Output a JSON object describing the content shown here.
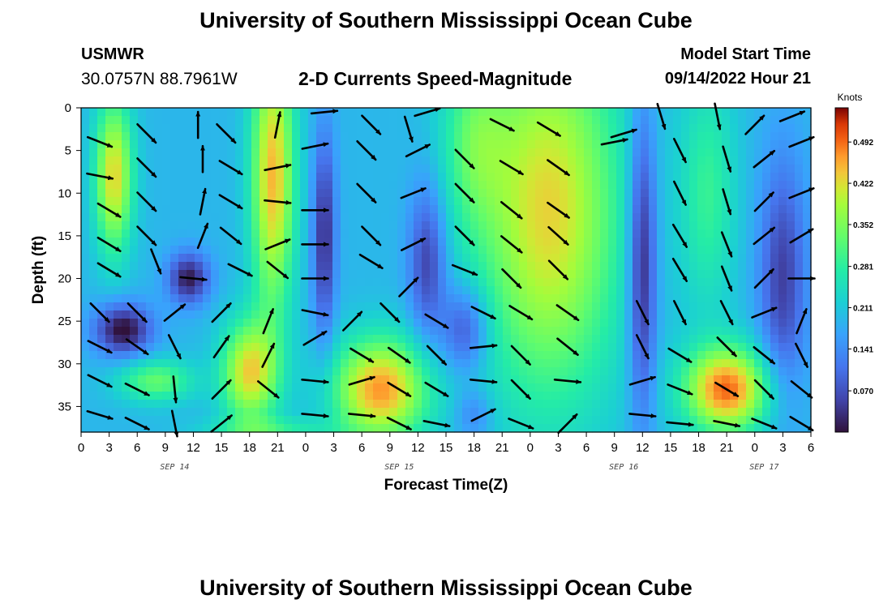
{
  "header": {
    "title": "University of Southern Mississippi Ocean Cube",
    "station": "USMWR",
    "coords": "30.0757N  88.7961W",
    "subtitle": "2-D Currents Speed-Magnitude",
    "model_start_label": "Model Start Time",
    "model_start_value": "09/14/2022 Hour 21"
  },
  "footer": {
    "title": "University of Southern Mississippi Ocean Cube"
  },
  "chart_data": {
    "type": "heatmap",
    "title": "2-D Currents Speed-Magnitude",
    "xlabel": "Forecast Time(Z)",
    "ylabel": "Depth (ft)",
    "colorbar_title": "Knots",
    "colorbar_ticks": [
      "0.492",
      "0.422",
      "0.352",
      "0.281",
      "0.211",
      "0.141",
      "0.070"
    ],
    "colorbar_values": [
      0.492,
      0.422,
      0.352,
      0.281,
      0.211,
      0.141,
      0.07
    ],
    "colorbar_range": [
      0.0,
      0.55
    ],
    "x_ticks": [
      "0",
      "3",
      "6",
      "9",
      "12",
      "15",
      "18",
      "21",
      "0",
      "3",
      "6",
      "9",
      "12",
      "15",
      "18",
      "21",
      "0",
      "3",
      "6",
      "9",
      "12",
      "15",
      "18",
      "21",
      "0",
      "3",
      "6"
    ],
    "x_range_hours": [
      0,
      78
    ],
    "date_labels": [
      {
        "text": "SEP 14",
        "hour": 10
      },
      {
        "text": "SEP 15",
        "hour": 34
      },
      {
        "text": "SEP 16",
        "hour": 58
      },
      {
        "text": "SEP 17",
        "hour": 73
      }
    ],
    "y_ticks": [
      "0",
      "5",
      "10",
      "15",
      "20",
      "25",
      "30",
      "35"
    ],
    "y_tick_values": [
      0,
      5,
      10,
      15,
      20,
      25,
      30,
      35
    ],
    "y_range_ft": [
      0,
      38
    ],
    "speed_features": [
      {
        "t": 3.5,
        "d": 8,
        "st": 2.0,
        "sd": 9,
        "amp": 0.24
      },
      {
        "t": 20.5,
        "d": 8,
        "st": 2.3,
        "sd": 16,
        "amp": 0.26
      },
      {
        "t": 18,
        "d": 31,
        "st": 3.0,
        "sd": 6,
        "amp": 0.24
      },
      {
        "t": 8,
        "d": 32,
        "st": 4.0,
        "sd": 2.5,
        "amp": 0.14
      },
      {
        "t": 32,
        "d": 33,
        "st": 5.0,
        "sd": 6,
        "amp": 0.28
      },
      {
        "t": 42,
        "d": 4,
        "st": 3.5,
        "sd": 10,
        "amp": 0.1
      },
      {
        "t": 50,
        "d": 12,
        "st": 7.5,
        "sd": 22,
        "amp": 0.24
      },
      {
        "t": 69,
        "d": 33,
        "st": 4.5,
        "sd": 5,
        "amp": 0.3
      },
      {
        "t": 67,
        "d": 10,
        "st": 3.0,
        "sd": 14,
        "amp": 0.1
      },
      {
        "t": 20,
        "d": 37.5,
        "st": 7,
        "sd": 1.2,
        "amp": 0.08
      }
    ],
    "slow_features": [
      {
        "t": 4.5,
        "d": 26,
        "st": 3.0,
        "sd": 3,
        "amp": -0.2
      },
      {
        "t": 11.5,
        "d": 20,
        "st": 2.2,
        "sd": 3,
        "amp": -0.18
      },
      {
        "t": 26,
        "d": 15,
        "st": 1.2,
        "sd": 12,
        "amp": -0.16
      },
      {
        "t": 37,
        "d": 18,
        "st": 2.0,
        "sd": 9,
        "amp": -0.14
      },
      {
        "t": 41,
        "d": 26,
        "st": 2.5,
        "sd": 5,
        "amp": -0.13
      },
      {
        "t": 60,
        "d": 18,
        "st": 1.5,
        "sd": 18,
        "amp": -0.18
      },
      {
        "t": 75,
        "d": 20,
        "st": 2.5,
        "sd": 14,
        "amp": -0.14
      },
      {
        "t": 42,
        "d": 36,
        "st": 2.0,
        "sd": 3,
        "amp": -0.07
      }
    ],
    "vectors": [
      {
        "t": 2,
        "d": 4,
        "u": 1,
        "v": 0.4
      },
      {
        "t": 7,
        "d": 3,
        "u": 1,
        "v": 1
      },
      {
        "t": 12.5,
        "d": 2,
        "u": 0,
        "v": -1
      },
      {
        "t": 15.5,
        "d": 3,
        "u": 1,
        "v": 1
      },
      {
        "t": 21,
        "d": 2,
        "u": 0.2,
        "v": -1
      },
      {
        "t": 26,
        "d": 0.5,
        "u": 1,
        "v": -0.1
      },
      {
        "t": 31,
        "d": 2,
        "u": 1,
        "v": 1
      },
      {
        "t": 35,
        "d": 2.5,
        "u": 0.3,
        "v": 1
      },
      {
        "t": 37,
        "d": 0.5,
        "u": 1,
        "v": -0.3
      },
      {
        "t": 45,
        "d": 2,
        "u": 1,
        "v": 0.5
      },
      {
        "t": 50,
        "d": 2.5,
        "u": 1,
        "v": 0.6
      },
      {
        "t": 58,
        "d": 3,
        "u": 1,
        "v": -0.3
      },
      {
        "t": 62,
        "d": 1,
        "u": 0.3,
        "v": 1
      },
      {
        "t": 68,
        "d": 1,
        "u": 0.2,
        "v": 1
      },
      {
        "t": 72,
        "d": 2,
        "u": 1,
        "v": -1
      },
      {
        "t": 76,
        "d": 1,
        "u": 1,
        "v": -0.4
      },
      {
        "t": 2,
        "d": 8,
        "u": 1,
        "v": 0.2
      },
      {
        "t": 7,
        "d": 7,
        "u": 1,
        "v": 1
      },
      {
        "t": 13,
        "d": 6,
        "u": 0,
        "v": -1
      },
      {
        "t": 16,
        "d": 7,
        "u": 1,
        "v": 0.6
      },
      {
        "t": 21,
        "d": 7,
        "u": 1,
        "v": -0.2
      },
      {
        "t": 25,
        "d": 4.5,
        "u": 1,
        "v": -0.2
      },
      {
        "t": 30.5,
        "d": 5,
        "u": 1,
        "v": 1
      },
      {
        "t": 36,
        "d": 5,
        "u": 1,
        "v": -0.5
      },
      {
        "t": 41,
        "d": 6,
        "u": 1,
        "v": 1
      },
      {
        "t": 46,
        "d": 7,
        "u": 1,
        "v": 0.6
      },
      {
        "t": 51,
        "d": 7,
        "u": 1,
        "v": 0.7
      },
      {
        "t": 57,
        "d": 4,
        "u": 1,
        "v": -0.2
      },
      {
        "t": 64,
        "d": 5,
        "u": 0.5,
        "v": 1
      },
      {
        "t": 69,
        "d": 6,
        "u": 0.3,
        "v": 1
      },
      {
        "t": 73,
        "d": 6,
        "u": 1,
        "v": -0.8
      },
      {
        "t": 77,
        "d": 4,
        "u": 1,
        "v": -0.4
      },
      {
        "t": 3,
        "d": 12,
        "u": 1,
        "v": 0.6
      },
      {
        "t": 7,
        "d": 11,
        "u": 1,
        "v": 1
      },
      {
        "t": 13,
        "d": 11,
        "u": 0.2,
        "v": -1
      },
      {
        "t": 16,
        "d": 11,
        "u": 1,
        "v": 0.6
      },
      {
        "t": 21,
        "d": 11,
        "u": 1,
        "v": 0.1
      },
      {
        "t": 25,
        "d": 12,
        "u": 1,
        "v": 0
      },
      {
        "t": 30.5,
        "d": 10,
        "u": 1,
        "v": 1
      },
      {
        "t": 35.5,
        "d": 10,
        "u": 1,
        "v": -0.4
      },
      {
        "t": 41,
        "d": 10,
        "u": 1,
        "v": 1
      },
      {
        "t": 46,
        "d": 12,
        "u": 1,
        "v": 0.8
      },
      {
        "t": 51,
        "d": 12,
        "u": 1,
        "v": 0.7
      },
      {
        "t": 64,
        "d": 10,
        "u": 0.5,
        "v": 1
      },
      {
        "t": 69,
        "d": 11,
        "u": 0.3,
        "v": 1
      },
      {
        "t": 73,
        "d": 11,
        "u": 1,
        "v": -1
      },
      {
        "t": 77,
        "d": 10,
        "u": 1,
        "v": -0.4
      },
      {
        "t": 3,
        "d": 16,
        "u": 1,
        "v": 0.6
      },
      {
        "t": 7,
        "d": 15,
        "u": 1,
        "v": 1
      },
      {
        "t": 13,
        "d": 15,
        "u": 0.4,
        "v": -1
      },
      {
        "t": 16,
        "d": 15,
        "u": 1,
        "v": 0.8
      },
      {
        "t": 21,
        "d": 16,
        "u": 1,
        "v": -0.4
      },
      {
        "t": 25,
        "d": 16,
        "u": 1,
        "v": 0
      },
      {
        "t": 31,
        "d": 15,
        "u": 1,
        "v": 1
      },
      {
        "t": 35.5,
        "d": 16,
        "u": 1,
        "v": -0.5
      },
      {
        "t": 41,
        "d": 15,
        "u": 1,
        "v": 1
      },
      {
        "t": 46,
        "d": 16,
        "u": 1,
        "v": 0.8
      },
      {
        "t": 51,
        "d": 15,
        "u": 1,
        "v": 0.9
      },
      {
        "t": 64,
        "d": 15,
        "u": 0.6,
        "v": 1
      },
      {
        "t": 69,
        "d": 16,
        "u": 0.4,
        "v": 1
      },
      {
        "t": 73,
        "d": 15,
        "u": 1,
        "v": -0.8
      },
      {
        "t": 77,
        "d": 15,
        "u": 1,
        "v": -0.6
      },
      {
        "t": 3,
        "d": 19,
        "u": 1,
        "v": 0.6
      },
      {
        "t": 8,
        "d": 18,
        "u": 0.4,
        "v": 1
      },
      {
        "t": 12,
        "d": 20,
        "u": 1,
        "v": 0.1
      },
      {
        "t": 17,
        "d": 19,
        "u": 1,
        "v": 0.5
      },
      {
        "t": 21,
        "d": 19,
        "u": 1,
        "v": 0.8
      },
      {
        "t": 25,
        "d": 20,
        "u": 1,
        "v": 0
      },
      {
        "t": 31,
        "d": 18,
        "u": 1,
        "v": 0.6
      },
      {
        "t": 35,
        "d": 21,
        "u": 1,
        "v": -1
      },
      {
        "t": 41,
        "d": 19,
        "u": 1,
        "v": 0.4
      },
      {
        "t": 46,
        "d": 20,
        "u": 1,
        "v": 1
      },
      {
        "t": 51,
        "d": 19,
        "u": 1,
        "v": 1
      },
      {
        "t": 64,
        "d": 19,
        "u": 0.6,
        "v": 1
      },
      {
        "t": 69,
        "d": 20,
        "u": 0.4,
        "v": 1
      },
      {
        "t": 73,
        "d": 20,
        "u": 1,
        "v": -1
      },
      {
        "t": 77,
        "d": 20,
        "u": 1,
        "v": 0
      },
      {
        "t": 2,
        "d": 24,
        "u": 1,
        "v": 1
      },
      {
        "t": 6,
        "d": 24,
        "u": 1,
        "v": 1
      },
      {
        "t": 10,
        "d": 24,
        "u": 1,
        "v": -0.8
      },
      {
        "t": 15,
        "d": 24,
        "u": 1,
        "v": -1
      },
      {
        "t": 20,
        "d": 25,
        "u": 0.4,
        "v": -1
      },
      {
        "t": 25,
        "d": 24,
        "u": 1,
        "v": 0.2
      },
      {
        "t": 29,
        "d": 25,
        "u": 1,
        "v": -1
      },
      {
        "t": 33,
        "d": 24,
        "u": 1,
        "v": 1
      },
      {
        "t": 38,
        "d": 25,
        "u": 1,
        "v": 0.6
      },
      {
        "t": 43,
        "d": 24,
        "u": 1,
        "v": 0.5
      },
      {
        "t": 47,
        "d": 24,
        "u": 1,
        "v": 0.6
      },
      {
        "t": 52,
        "d": 24,
        "u": 1,
        "v": 0.7
      },
      {
        "t": 60,
        "d": 24,
        "u": 0.5,
        "v": 1
      },
      {
        "t": 64,
        "d": 24,
        "u": 0.5,
        "v": 1
      },
      {
        "t": 69,
        "d": 24,
        "u": 0.5,
        "v": 1
      },
      {
        "t": 73,
        "d": 24,
        "u": 1,
        "v": -0.4
      },
      {
        "t": 77,
        "d": 25,
        "u": 0.4,
        "v": -1
      },
      {
        "t": 2,
        "d": 28,
        "u": 1,
        "v": 0.5
      },
      {
        "t": 6,
        "d": 28,
        "u": 1,
        "v": 0.7
      },
      {
        "t": 10,
        "d": 28,
        "u": 0.5,
        "v": 1
      },
      {
        "t": 15,
        "d": 28,
        "u": 0.7,
        "v": -1
      },
      {
        "t": 20,
        "d": 29,
        "u": 0.5,
        "v": -1
      },
      {
        "t": 25,
        "d": 27,
        "u": 1,
        "v": -0.6
      },
      {
        "t": 30,
        "d": 29,
        "u": 1,
        "v": 0.6
      },
      {
        "t": 34,
        "d": 29,
        "u": 1,
        "v": 0.7
      },
      {
        "t": 38,
        "d": 29,
        "u": 1,
        "v": 1
      },
      {
        "t": 43,
        "d": 28,
        "u": 1,
        "v": -0.1
      },
      {
        "t": 47,
        "d": 29,
        "u": 1,
        "v": 1
      },
      {
        "t": 52,
        "d": 28,
        "u": 1,
        "v": 0.8
      },
      {
        "t": 60,
        "d": 28,
        "u": 0.5,
        "v": 1
      },
      {
        "t": 64,
        "d": 29,
        "u": 1,
        "v": 0.6
      },
      {
        "t": 69,
        "d": 28,
        "u": 1,
        "v": 1
      },
      {
        "t": 73,
        "d": 29,
        "u": 1,
        "v": 0.8
      },
      {
        "t": 77,
        "d": 29,
        "u": 0.5,
        "v": 1
      },
      {
        "t": 2,
        "d": 32,
        "u": 1,
        "v": 0.5
      },
      {
        "t": 6,
        "d": 33,
        "u": 1,
        "v": 0.5
      },
      {
        "t": 10,
        "d": 33,
        "u": 0.1,
        "v": 1
      },
      {
        "t": 15,
        "d": 33,
        "u": 1,
        "v": -1
      },
      {
        "t": 20,
        "d": 33,
        "u": 1,
        "v": 0.8
      },
      {
        "t": 25,
        "d": 32,
        "u": 1,
        "v": 0.1
      },
      {
        "t": 30,
        "d": 32,
        "u": 1,
        "v": -0.3
      },
      {
        "t": 34,
        "d": 33,
        "u": 1,
        "v": 0.6
      },
      {
        "t": 38,
        "d": 33,
        "u": 1,
        "v": 0.6
      },
      {
        "t": 43,
        "d": 32,
        "u": 1,
        "v": 0.1
      },
      {
        "t": 47,
        "d": 33,
        "u": 1,
        "v": 1
      },
      {
        "t": 52,
        "d": 32,
        "u": 1,
        "v": 0.1
      },
      {
        "t": 60,
        "d": 32,
        "u": 1,
        "v": -0.3
      },
      {
        "t": 64,
        "d": 33,
        "u": 1,
        "v": 0.4
      },
      {
        "t": 69,
        "d": 33,
        "u": 1,
        "v": 0.6
      },
      {
        "t": 73,
        "d": 33,
        "u": 1,
        "v": 1
      },
      {
        "t": 77,
        "d": 33,
        "u": 1,
        "v": 0.8
      },
      {
        "t": 2,
        "d": 36,
        "u": 1,
        "v": 0.3
      },
      {
        "t": 6,
        "d": 37,
        "u": 1,
        "v": 0.5
      },
      {
        "t": 10,
        "d": 37,
        "u": 0.2,
        "v": 1
      },
      {
        "t": 15,
        "d": 37,
        "u": 1,
        "v": -0.8
      },
      {
        "t": 25,
        "d": 36,
        "u": 1,
        "v": 0.1
      },
      {
        "t": 30,
        "d": 36,
        "u": 1,
        "v": 0.1
      },
      {
        "t": 34,
        "d": 37,
        "u": 1,
        "v": 0.5
      },
      {
        "t": 38,
        "d": 37,
        "u": 1,
        "v": 0.2
      },
      {
        "t": 43,
        "d": 36,
        "u": 1,
        "v": -0.5
      },
      {
        "t": 47,
        "d": 37,
        "u": 1,
        "v": 0.4
      },
      {
        "t": 52,
        "d": 37,
        "u": 1,
        "v": -1
      },
      {
        "t": 60,
        "d": 36,
        "u": 1,
        "v": 0.1
      },
      {
        "t": 64,
        "d": 37,
        "u": 1,
        "v": 0.1
      },
      {
        "t": 69,
        "d": 37,
        "u": 1,
        "v": 0.2
      },
      {
        "t": 73,
        "d": 37,
        "u": 1,
        "v": 0.4
      },
      {
        "t": 77,
        "d": 37,
        "u": 1,
        "v": 0.6
      }
    ]
  }
}
